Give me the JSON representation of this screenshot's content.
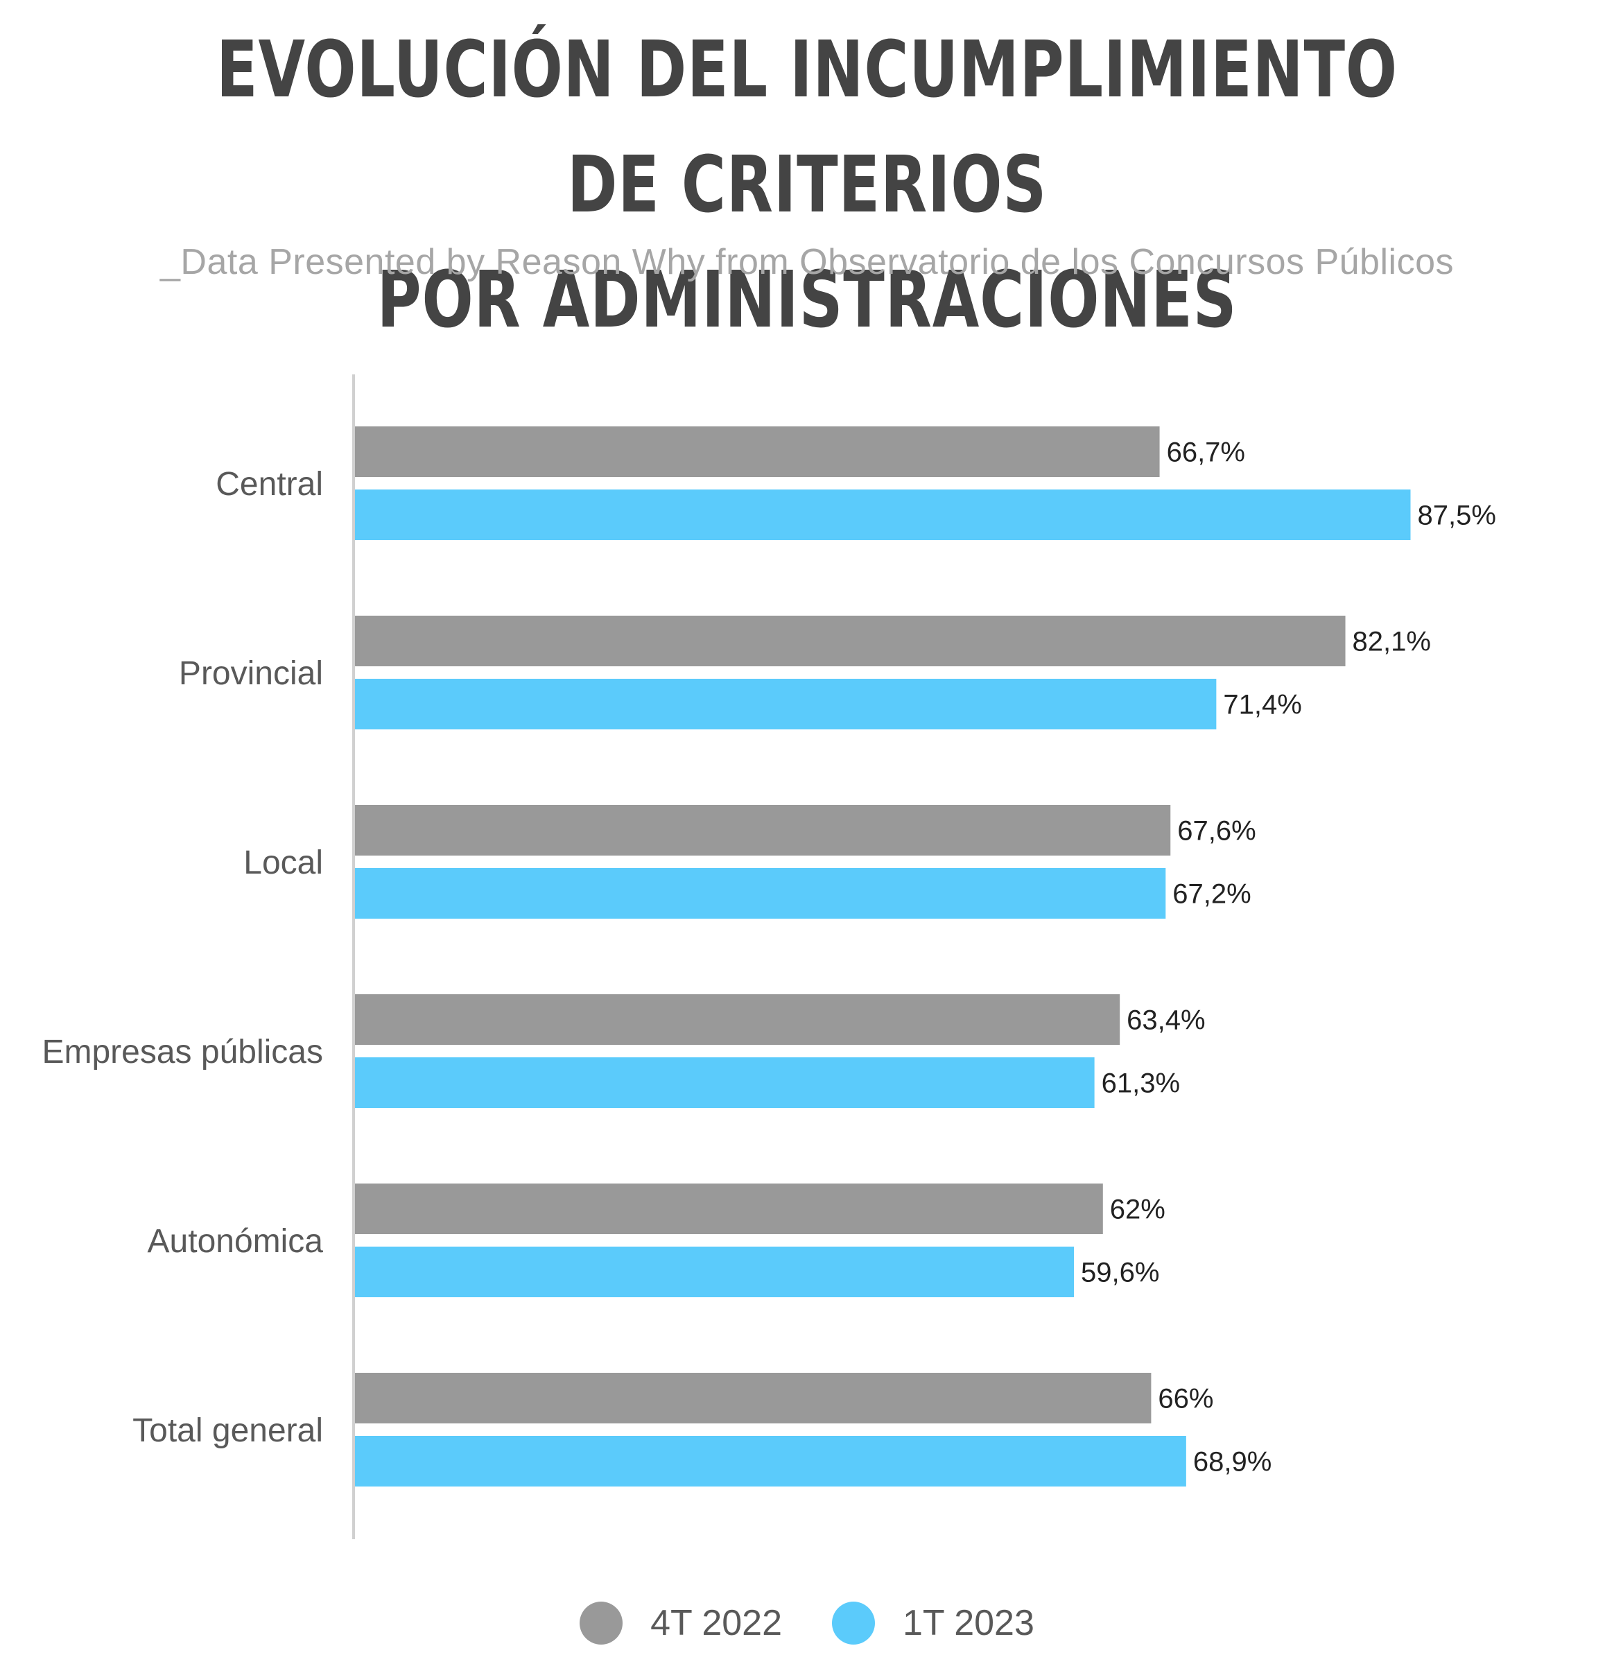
{
  "header": {
    "title_line1": "EVOLUCIÓN DEL INCUMPLIMIENTO DE CRITERIOS",
    "title_line2": "POR ADMINISTRACIONES",
    "subtitle": "_Data Presented by Reason Why from Observatorio de los Concursos Públicos"
  },
  "colors": {
    "series_4t2022": "#999999",
    "series_1t2023": "#5bcbfb",
    "axis": "#d0d0d0"
  },
  "chart_data": {
    "type": "bar",
    "orientation": "horizontal",
    "title": "EVOLUCIÓN DEL INCUMPLIMIENTO DE CRITERIOS POR ADMINISTRACIONES",
    "subtitle": "_Data Presented by Reason Why from Observatorio de los Concursos Públicos",
    "categories": [
      "Central",
      "Provincial",
      "Local",
      "Empresas públicas",
      "Autonómica",
      "Total general"
    ],
    "series": [
      {
        "name": "4T 2022",
        "color": "#999999",
        "values": [
          66.7,
          82.1,
          67.6,
          63.4,
          62,
          66
        ],
        "labels": [
          "66,7%",
          "82,1%",
          "67,6%",
          "63,4%",
          "62%",
          "66%"
        ]
      },
      {
        "name": "1T 2023",
        "color": "#5bcbfb",
        "values": [
          87.5,
          71.4,
          67.2,
          61.3,
          59.6,
          68.9
        ],
        "labels": [
          "87,5%",
          "71,4%",
          "67,2%",
          "61,3%",
          "59,6%",
          "68,9%"
        ]
      }
    ],
    "xlim": [
      0,
      100
    ],
    "grid": false,
    "legend_position": "bottom-center"
  }
}
